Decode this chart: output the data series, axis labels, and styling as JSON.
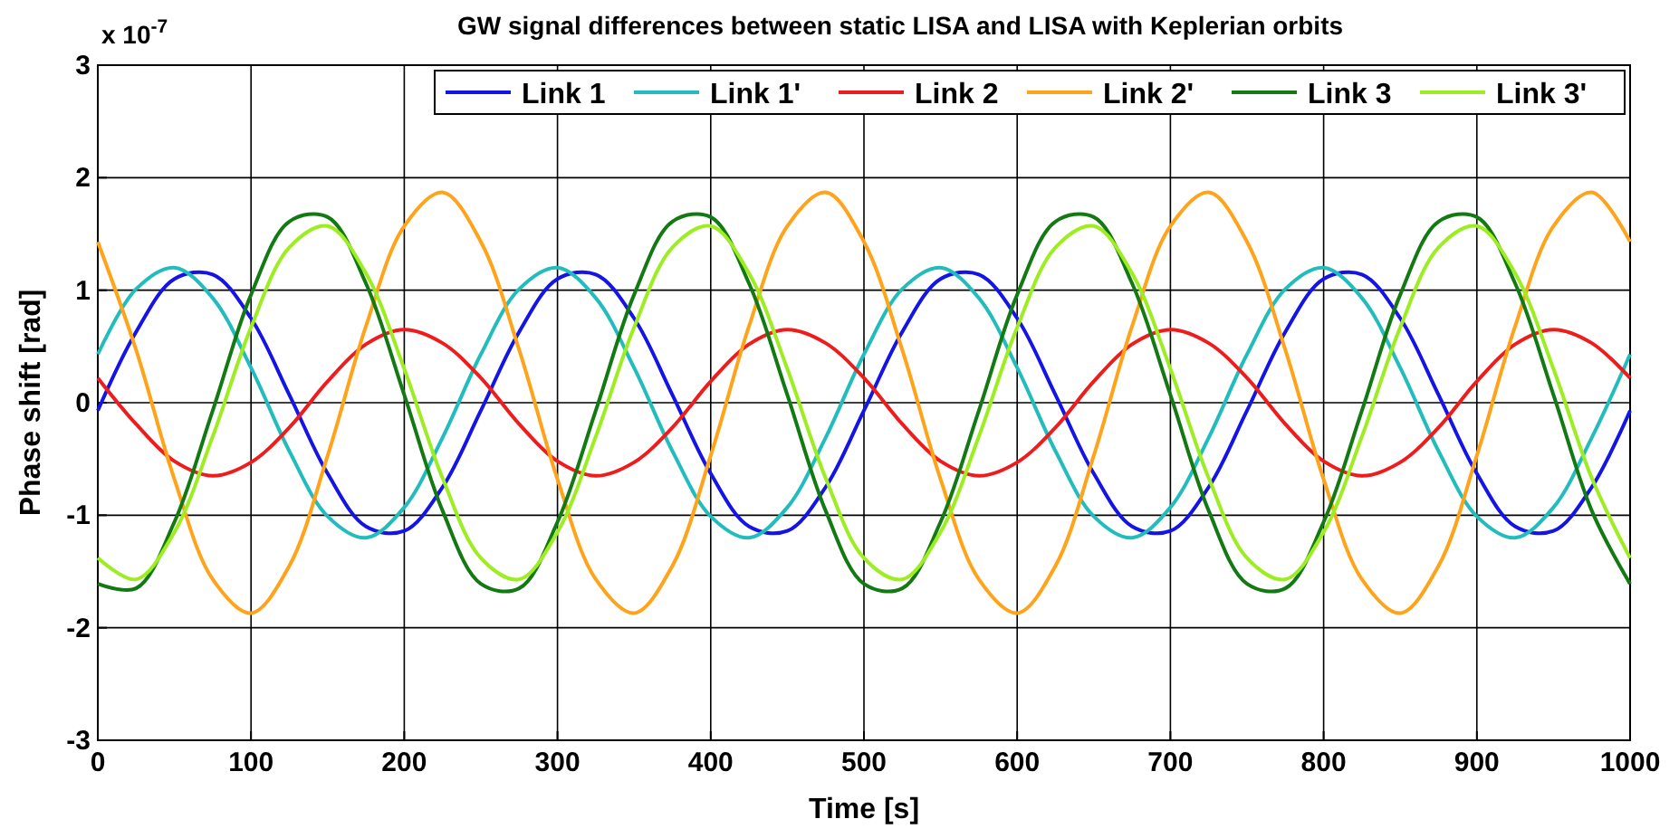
{
  "chart_data": {
    "type": "line",
    "title": "GW signal differences between static LISA and LISA with Keplerian orbits",
    "xlabel": "Time  [s]",
    "ylabel": "Phase shift  [rad]",
    "annotations": [
      "x 10$^{-7}$"
    ],
    "x": [
      0,
      25,
      50,
      75,
      100,
      125,
      150,
      175,
      200,
      225,
      250,
      275,
      300,
      325,
      350,
      375,
      400,
      425,
      450,
      475,
      500,
      525,
      550,
      575,
      600,
      625,
      650,
      675,
      700,
      725,
      750,
      775,
      800,
      825,
      850,
      875,
      900,
      925,
      950,
      975,
      1000
    ],
    "xlim": [
      0,
      1000
    ],
    "xticks": [
      0,
      100,
      200,
      300,
      400,
      500,
      600,
      700,
      800,
      900,
      1000
    ],
    "ylim": [
      -3,
      3
    ],
    "yticks": [
      -3,
      -2,
      -1,
      0,
      1,
      2,
      3
    ],
    "grid": true,
    "legend": "top right",
    "series": [
      {
        "name": "Link 1",
        "color": "#1414e6",
        "values": [
          -0.07,
          0.63,
          1.1,
          1.14,
          0.75,
          0.07,
          -0.63,
          -1.1,
          -1.14,
          -0.75,
          -0.07,
          0.63,
          1.1,
          1.14,
          0.75,
          0.07,
          -0.63,
          -1.1,
          -1.14,
          -0.75,
          -0.07,
          0.63,
          1.1,
          1.14,
          0.75,
          0.07,
          -0.63,
          -1.1,
          -1.14,
          -0.75,
          -0.07,
          0.63,
          1.1,
          1.14,
          0.75,
          0.07,
          -0.63,
          -1.1,
          -1.14,
          -0.75,
          -0.07
        ]
      },
      {
        "name": "Link 1'",
        "color": "#22bcbc",
        "values": [
          0.43,
          1.01,
          1.2,
          0.93,
          0.31,
          -0.43,
          -1.01,
          -1.2,
          -0.93,
          -0.31,
          0.43,
          1.01,
          1.2,
          0.93,
          0.31,
          -0.43,
          -1.01,
          -1.2,
          -0.93,
          -0.31,
          0.43,
          1.01,
          1.2,
          0.93,
          0.31,
          -0.43,
          -1.01,
          -1.2,
          -0.93,
          -0.31,
          0.43,
          1.01,
          1.2,
          0.93,
          0.31,
          -0.43,
          -1.01,
          -1.2,
          -0.93,
          -0.31,
          0.43
        ]
      },
      {
        "name": "Link 2",
        "color": "#ee1c1c",
        "values": [
          0.22,
          -0.19,
          -0.52,
          -0.65,
          -0.53,
          -0.22,
          0.19,
          0.52,
          0.65,
          0.53,
          0.22,
          -0.19,
          -0.52,
          -0.65,
          -0.53,
          -0.22,
          0.19,
          0.52,
          0.65,
          0.53,
          0.22,
          -0.19,
          -0.52,
          -0.65,
          -0.53,
          -0.22,
          0.19,
          0.52,
          0.65,
          0.53,
          0.22,
          -0.19,
          -0.52,
          -0.65,
          -0.53,
          -0.22,
          0.19,
          0.52,
          0.65,
          0.53,
          0.22
        ]
      },
      {
        "name": "Link 2'",
        "color": "#ffa31a",
        "values": [
          1.43,
          0.47,
          -0.68,
          -1.57,
          -1.87,
          -1.45,
          -0.47,
          0.68,
          1.57,
          1.87,
          1.43,
          0.47,
          -0.68,
          -1.57,
          -1.87,
          -1.45,
          -0.47,
          0.68,
          1.57,
          1.87,
          1.43,
          0.47,
          -0.68,
          -1.57,
          -1.87,
          -1.45,
          -0.47,
          0.68,
          1.57,
          1.87,
          1.43,
          0.47,
          -0.68,
          -1.57,
          -1.87,
          -1.45,
          -0.47,
          0.68,
          1.57,
          1.87,
          1.43
        ]
      },
      {
        "name": "Link 3",
        "color": "#137a13",
        "values": [
          -1.61,
          -1.65,
          -1.06,
          -0.07,
          0.96,
          1.61,
          1.65,
          1.06,
          0.07,
          -0.96,
          -1.61,
          -1.65,
          -1.06,
          -0.07,
          0.96,
          1.61,
          1.65,
          1.06,
          0.07,
          -0.96,
          -1.61,
          -1.65,
          -1.06,
          -0.07,
          0.96,
          1.61,
          1.65,
          1.06,
          0.07,
          -0.96,
          -1.61,
          -1.65,
          -1.06,
          -0.07,
          0.96,
          1.61,
          1.65,
          1.06,
          0.07,
          -0.96,
          -1.61
        ]
      },
      {
        "name": "Link 3'",
        "color": "#9ded22",
        "values": [
          -1.38,
          -1.57,
          -1.15,
          -0.3,
          0.67,
          1.38,
          1.57,
          1.15,
          0.3,
          -0.67,
          -1.38,
          -1.57,
          -1.15,
          -0.3,
          0.67,
          1.38,
          1.57,
          1.15,
          0.3,
          -0.67,
          -1.38,
          -1.57,
          -1.15,
          -0.3,
          0.67,
          1.38,
          1.57,
          1.15,
          0.3,
          -0.67,
          -1.38,
          -1.57,
          -1.15,
          -0.3,
          0.67,
          1.38,
          1.57,
          1.15,
          0.3,
          -0.67,
          -1.38
        ]
      }
    ]
  }
}
